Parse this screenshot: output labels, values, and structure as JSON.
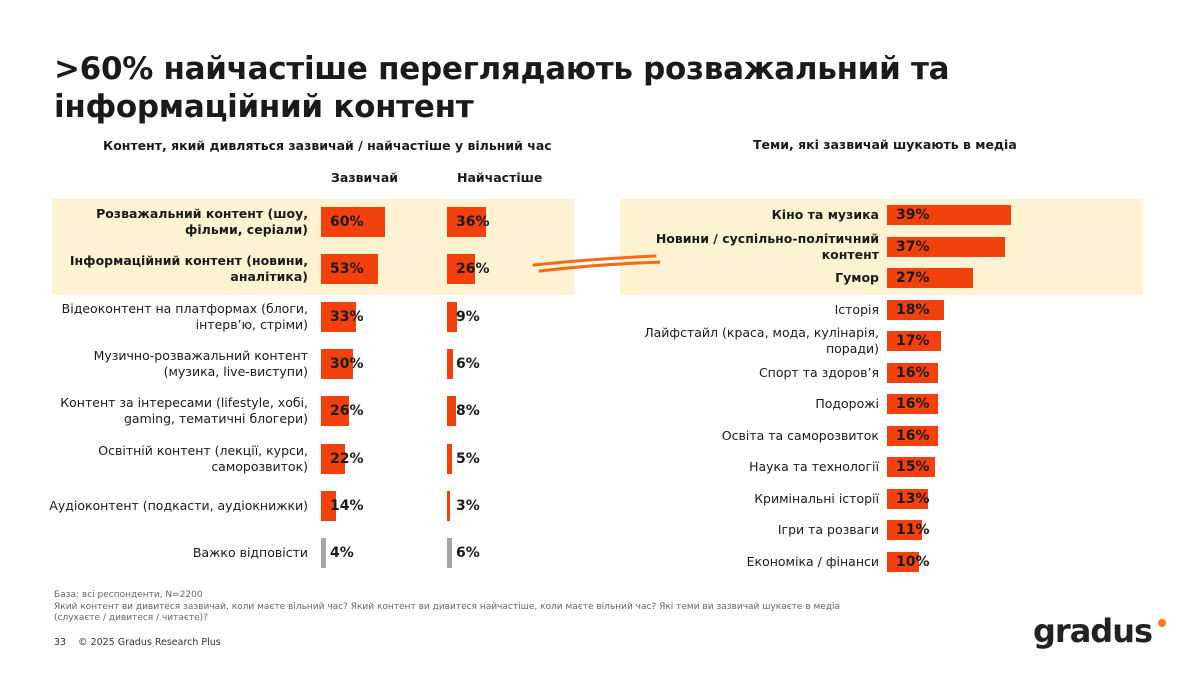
{
  "title": ">60% найчастіше переглядають розважальний та інформаційний контент",
  "left_chart_title": "Контент, який дивляться зазвичай / найчастіше у вільний час",
  "right_chart_title": "Теми, які зазвичай шукають в медіа",
  "colors": {
    "accent": "#f2410c",
    "muted": "#a6a6a6",
    "highlight": "#fdf3d3",
    "logo_dot": "#f47b20"
  },
  "chart_data": [
    {
      "type": "bar",
      "orientation": "horizontal",
      "title": "Контент, який дивляться зазвичай / найчастіше у вільний час",
      "categories": [
        "Розважальний контент (шоу, фільми, серіали)",
        "Інформаційний контент (новини, аналітика)",
        "Відеоконтент на платформах (блоги, інтерв’ю, стріми)",
        "Музично-розважальний контент (музика, live-виступи)",
        "Контент за інтересами (lifestyle, хобі, gaming, тематичні блогери)",
        "Освітній контент (лекції, курси, саморозвиток)",
        "Аудіоконтент (подкасти, аудіокнижки)",
        "Важко відповісти"
      ],
      "highlighted": [
        true,
        true,
        false,
        false,
        false,
        false,
        false,
        false
      ],
      "muted": [
        false,
        false,
        false,
        false,
        false,
        false,
        false,
        true
      ],
      "series": [
        {
          "name": "Зазвичай",
          "values": [
            60,
            53,
            33,
            30,
            26,
            22,
            14,
            4
          ],
          "labels": [
            "60%",
            "53%",
            "33%",
            "30%",
            "26%",
            "22%",
            "14%",
            "4%"
          ]
        },
        {
          "name": "Найчастіше",
          "values": [
            36,
            26,
            9,
            6,
            8,
            5,
            3,
            6
          ],
          "labels": [
            "36%",
            "26%",
            "9%",
            "6%",
            "8%",
            "5%",
            "3%",
            "6%"
          ]
        }
      ],
      "unit": "%"
    },
    {
      "type": "bar",
      "orientation": "horizontal",
      "title": "Теми, які зазвичай шукають в медіа",
      "categories": [
        "Кіно та музика",
        "Новини / суспільно-політичний контент",
        "Гумор",
        "Історія",
        "Лайфстайл (краса, мода, кулінарія, поради)",
        "Спорт та здоров’я",
        "Подорожі",
        "Освіта та саморозвиток",
        "Наука та технології",
        "Кримінальні історії",
        "Ігри та розваги",
        "Економіка / фінанси"
      ],
      "highlighted": [
        true,
        true,
        true,
        false,
        false,
        false,
        false,
        false,
        false,
        false,
        false,
        false
      ],
      "values": [
        39,
        37,
        27,
        18,
        17,
        16,
        16,
        16,
        15,
        13,
        11,
        10
      ],
      "labels": [
        "39%",
        "37%",
        "27%",
        "18%",
        "17%",
        "16%",
        "16%",
        "16%",
        "15%",
        "13%",
        "11%",
        "10%"
      ],
      "unit": "%"
    }
  ],
  "left_labels": [
    [
      "Розважальний контент (шоу,",
      "фільми, серіали)"
    ],
    [
      "Інформаційний контент (новини,",
      "аналітика)"
    ],
    [
      "Відеоконтент на платформах (блоги,",
      "інтерв’ю, стріми)"
    ],
    [
      "Музично-розважальний контент",
      "(музика, live-виступи)"
    ],
    [
      "Контент за інтересами (lifestyle, хобі,",
      "gaming, тематичні блогери)"
    ],
    [
      "Освітній контент (лекції, курси,",
      "саморозвиток)"
    ],
    [
      "Аудіоконтент (подкасти, аудіокнижки)"
    ],
    [
      "Важко відповісти"
    ]
  ],
  "right_labels": [
    [
      "Кіно та музика"
    ],
    [
      "Новини / суспільно-політичний",
      "контент"
    ],
    [
      "Гумор"
    ],
    [
      "Історія"
    ],
    [
      "Лайфстайл (краса, мода, кулінарія,",
      "поради)"
    ],
    [
      "Спорт та здоров’я"
    ],
    [
      "Подорожі"
    ],
    [
      "Освіта та саморозвиток"
    ],
    [
      "Наука та технології"
    ],
    [
      "Кримінальні історії"
    ],
    [
      "Ігри та розваги"
    ],
    [
      "Економіка / фінанси"
    ]
  ],
  "footer": {
    "base": "База: всі респонденти, N=2200",
    "question_line1": "Який контент ви дивитеся зазвичай, коли маєте вільний час? Який контент ви дивитеся найчастіше, коли маєте вільний час? Які теми ви зазвичай шукаєте в медіа",
    "question_line2": "(слухаєте / дивитеся / читаєте)?",
    "page_number": "33",
    "copyright": "© 2025 Gradus Research Plus",
    "logo_text": "gradus"
  }
}
